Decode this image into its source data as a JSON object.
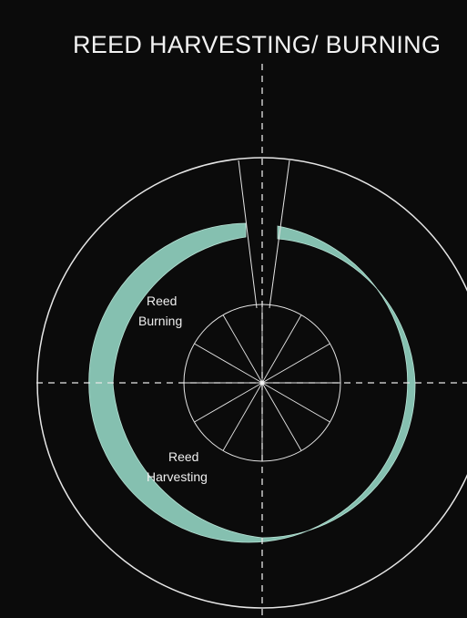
{
  "title": "REED HARVESTING/ BURNING",
  "labels": {
    "burning_line1": "Reed",
    "burning_line2": "Burning",
    "harvesting_line1": "Reed",
    "harvesting_line2": "Harvesting"
  },
  "colors": {
    "background": "#0b0b0b",
    "crescent": "#8fcfbd",
    "lines": "#e6e6e6"
  }
}
